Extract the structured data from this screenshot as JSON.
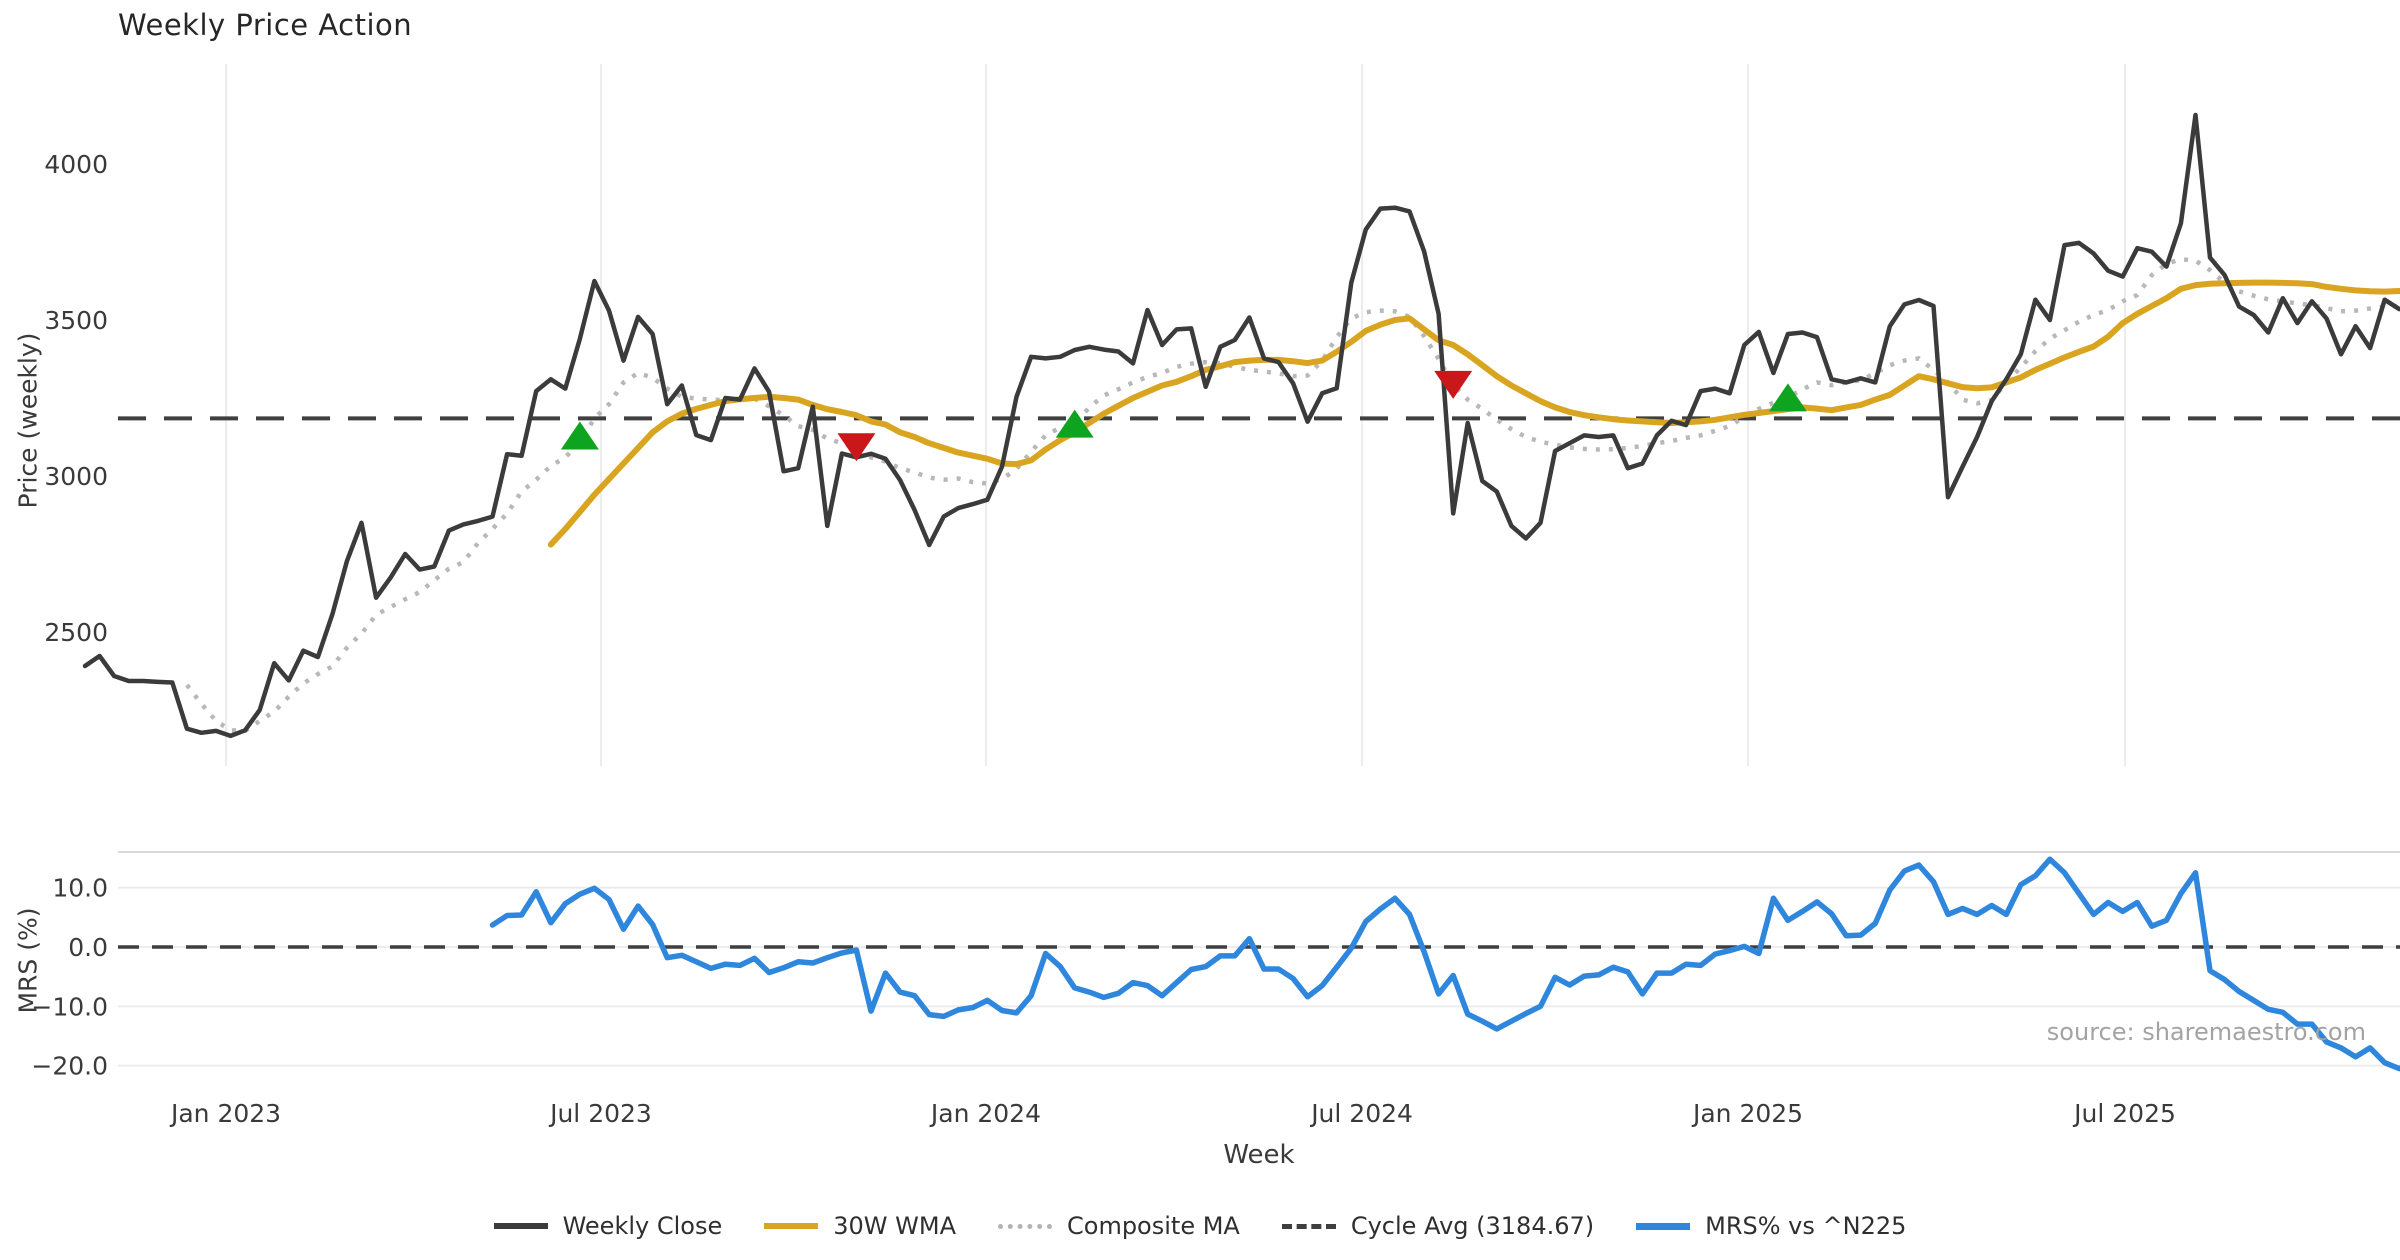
{
  "header": {
    "title": "Weekly Price Action"
  },
  "source_note": "source: sharemaestro.com",
  "colors": {
    "weekly_close": "#3b3b3b",
    "wma": "#d9a521",
    "composite": "#b8b8b8",
    "cycle_avg": "#3f3f3f",
    "mrs": "#2e86dd",
    "marker_up": "#0fa41f",
    "marker_down": "#c9171a",
    "grid": "#ececec",
    "panel_border": "#d9d9d9",
    "tick_text": "#3a3a3a"
  },
  "legend": {
    "items": [
      {
        "label": "Weekly Close",
        "icon": "solid-dark-line"
      },
      {
        "label": "30W WMA",
        "icon": "solid-gold-line"
      },
      {
        "label": "Composite MA",
        "icon": "dotted-gray-line"
      },
      {
        "label": "Cycle Avg (3184.67)",
        "icon": "dashed-dark-line"
      },
      {
        "label": "MRS% vs ^N225",
        "icon": "solid-blue-line"
      }
    ]
  },
  "chart_data": {
    "type": "line",
    "title": "Weekly Price Action",
    "x": {
      "xlabel": "Week",
      "weeks": 160,
      "ticks": [
        {
          "week": 9.69,
          "label": "Jan 2023"
        },
        {
          "week": 35.45,
          "label": "Jul 2023"
        },
        {
          "week": 61.9,
          "label": "Jan 2024"
        },
        {
          "week": 87.74,
          "label": "Jul 2024"
        },
        {
          "week": 114.26,
          "label": "Jan 2025"
        },
        {
          "week": 140.16,
          "label": "Jul 2025"
        }
      ]
    },
    "panels": [
      {
        "id": "price",
        "ylabel": "Price (weekly)",
        "ylim": [
          2100,
          4300
        ],
        "yticks": [
          {
            "v": 2500,
            "label": "2500"
          },
          {
            "v": 3000,
            "label": "3000"
          },
          {
            "v": 3500,
            "label": "3500"
          },
          {
            "v": 4000,
            "label": "4000"
          }
        ],
        "cycle_avg": 3184.67,
        "series": [
          {
            "name": "Weekly Close",
            "style": "solid",
            "color": "#3b3b3b",
            "width": 4.5,
            "start_week": 0,
            "values": [
              2391,
              2423,
              2359,
              2343,
              2343,
              2340,
              2338,
              2190,
              2177,
              2183,
              2167,
              2185,
              2250,
              2400,
              2345,
              2440,
              2420,
              2557,
              2728,
              2850,
              2610,
              2675,
              2750,
              2700,
              2710,
              2825,
              2845,
              2856,
              2870,
              3070,
              3065,
              3272,
              3310,
              3280,
              3440,
              3625,
              3530,
              3370,
              3510,
              3455,
              3230,
              3290,
              3131,
              3115,
              3250,
              3245,
              3345,
              3270,
              3015,
              3025,
              3222,
              2840,
              3072,
              3060,
              3071,
              3055,
              2987,
              2891,
              2779,
              2870,
              2897,
              2910,
              2924,
              3030,
              3254,
              3382,
              3377,
              3382,
              3404,
              3414,
              3405,
              3399,
              3361,
              3532,
              3420,
              3470,
              3473,
              3286,
              3414,
              3436,
              3508,
              3377,
              3365,
              3297,
              3174,
              3265,
              3281,
              3620,
              3790,
              3857,
              3860,
              3848,
              3720,
              3520,
              2880,
              3170,
              2984,
              2950,
              2840,
              2800,
              2850,
              3080,
              3105,
              3130,
              3125,
              3130,
              3025,
              3040,
              3130,
              3177,
              3163,
              3272,
              3280,
              3265,
              3420,
              3462,
              3330,
              3455,
              3460,
              3445,
              3310,
              3300,
              3313,
              3300,
              3480,
              3550,
              3564,
              3545,
              2932,
              3030,
              3125,
              3240,
              3310,
              3390,
              3565,
              3500,
              3740,
              3747,
              3713,
              3658,
              3639,
              3730,
              3719,
              3671,
              3810,
              4157,
              3700,
              3644,
              3543,
              3516,
              3460,
              3570,
              3490,
              3560,
              3505,
              3390,
              3480,
              3410,
              3565,
              3535
            ]
          },
          {
            "name": "30W WMA",
            "style": "solid",
            "color": "#d9a521",
            "width": 6,
            "start_week": 32,
            "values": [
              2780,
              2830,
              2885,
              2940,
              2990,
              3040,
              3090,
              3140,
              3175,
              3200,
              3215,
              3228,
              3240,
              3246,
              3250,
              3254,
              3250,
              3245,
              3228,
              3214,
              3205,
              3195,
              3175,
              3165,
              3140,
              3125,
              3105,
              3090,
              3075,
              3065,
              3055,
              3040,
              3038,
              3050,
              3085,
              3115,
              3140,
              3170,
              3200,
              3225,
              3250,
              3270,
              3290,
              3302,
              3320,
              3340,
              3352,
              3365,
              3370,
              3372,
              3372,
              3368,
              3362,
              3370,
              3398,
              3430,
              3465,
              3485,
              3500,
              3505,
              3470,
              3435,
              3420,
              3390,
              3355,
              3320,
              3290,
              3265,
              3240,
              3220,
              3205,
              3195,
              3188,
              3182,
              3178,
              3175,
              3172,
              3170,
              3172,
              3175,
              3180,
              3188,
              3196,
              3202,
              3208,
              3214,
              3220,
              3216,
              3211,
              3220,
              3228,
              3245,
              3260,
              3290,
              3320,
              3310,
              3297,
              3285,
              3281,
              3284,
              3300,
              3316,
              3340,
              3360,
              3380,
              3398,
              3415,
              3446,
              3490,
              3520,
              3545,
              3570,
              3600,
              3612,
              3616,
              3618,
              3619,
              3620,
              3620,
              3619,
              3618,
              3615,
              3606,
              3600,
              3595,
              3592,
              3591,
              3593
            ]
          },
          {
            "name": "Composite MA",
            "style": "dotted",
            "color": "#b8b8b8",
            "width": 4.5,
            "start_week": 7,
            "values": [
              2330,
              2270,
              2215,
              2185,
              2183,
              2215,
              2245,
              2293,
              2335,
              2365,
              2390,
              2450,
              2495,
              2555,
              2580,
              2605,
              2628,
              2666,
              2703,
              2724,
              2785,
              2830,
              2880,
              2950,
              2988,
              3032,
              3060,
              3108,
              3185,
              3230,
              3300,
              3330,
              3315,
              3280,
              3254,
              3248,
              3245,
              3243,
              3246,
              3248,
              3223,
              3195,
              3160,
              3148,
              3120,
              3105,
              3090,
              3060,
              3046,
              3025,
              3012,
              2995,
              2988,
              2992,
              2980,
              2976,
              2990,
              3022,
              3078,
              3130,
              3155,
              3168,
              3220,
              3258,
              3278,
              3300,
              3318,
              3330,
              3350,
              3360,
              3365,
              3362,
              3350,
              3340,
              3335,
              3329,
              3320,
              3322,
              3370,
              3445,
              3505,
              3525,
              3530,
              3528,
              3510,
              3448,
              3375,
              3292,
              3245,
              3215,
              3180,
              3150,
              3125,
              3110,
              3100,
              3092,
              3087,
              3085,
              3086,
              3090,
              3096,
              3105,
              3112,
              3122,
              3130,
              3145,
              3160,
              3190,
              3215,
              3235,
              3252,
              3278,
              3300,
              3291,
              3300,
              3307,
              3330,
              3355,
              3370,
              3377,
              3340,
              3300,
              3245,
              3233,
              3243,
              3300,
              3348,
              3400,
              3440,
              3467,
              3495,
              3516,
              3532,
              3560,
              3580,
              3644,
              3680,
              3695,
              3690,
              3660,
              3620,
              3592,
              3578,
              3566,
              3560,
              3553,
              3547,
              3538,
              3528,
              3530,
              3537,
              3543,
              3545
            ]
          }
        ],
        "markers": [
          {
            "week": 34,
            "value": 3130,
            "dir": "up"
          },
          {
            "week": 53,
            "value": 3092,
            "dir": "down"
          },
          {
            "week": 68,
            "value": 3168,
            "dir": "up"
          },
          {
            "week": 94,
            "value": 3292,
            "dir": "down"
          },
          {
            "week": 117,
            "value": 3252,
            "dir": "up"
          }
        ]
      },
      {
        "id": "mrs",
        "ylabel": "MRS (%)",
        "ylim": [
          -24,
          17
        ],
        "yticks": [
          {
            "v": 10,
            "label": "10.0"
          },
          {
            "v": 0,
            "label": "0.0"
          },
          {
            "v": -10,
            "label": "−10.0"
          },
          {
            "v": -20,
            "label": "−20.0"
          }
        ],
        "zero_line": 0.0,
        "series": [
          {
            "name": "MRS% vs ^N225",
            "style": "solid",
            "color": "#2e86dd",
            "width": 5.5,
            "start_week": 28,
            "values": [
              3.7,
              5.3,
              5.4,
              9.3,
              4.1,
              7.3,
              8.9,
              9.9,
              8.0,
              3.0,
              6.9,
              3.8,
              -1.8,
              -1.4,
              -2.5,
              -3.6,
              -2.9,
              -3.1,
              -1.9,
              -4.3,
              -3.5,
              -2.5,
              -2.7,
              -1.8,
              -1.0,
              -0.5,
              -10.8,
              -4.4,
              -7.6,
              -8.2,
              -11.4,
              -11.7,
              -10.6,
              -10.2,
              -9.0,
              -10.7,
              -11.1,
              -8.2,
              -1.1,
              -3.3,
              -6.9,
              -7.6,
              -8.5,
              -7.8,
              -6.0,
              -6.5,
              -8.2,
              -6.0,
              -3.8,
              -3.3,
              -1.5,
              -1.5,
              1.4,
              -3.7,
              -3.7,
              -5.3,
              -8.4,
              -6.5,
              -3.4,
              -0.2,
              4.3,
              6.4,
              8.2,
              5.5,
              -0.8,
              -7.9,
              -4.8,
              -11.3,
              -12.5,
              -13.8,
              -12.5,
              -11.2,
              -10.0,
              -5.1,
              -6.4,
              -4.9,
              -4.7,
              -3.4,
              -4.2,
              -7.9,
              -4.4,
              -4.4,
              -2.9,
              -3.1,
              -1.2,
              -0.6,
              0.1,
              -1.1,
              8.2,
              4.5,
              6.0,
              7.6,
              5.6,
              1.9,
              2.0,
              4.0,
              9.6,
              12.8,
              13.8,
              11.0,
              5.5,
              6.5,
              5.5,
              7.0,
              5.5,
              10.5,
              12.0,
              14.8,
              12.5,
              9.0,
              5.5,
              7.5,
              6.0,
              7.5,
              3.5,
              4.5,
              9.0,
              12.5,
              -4.0,
              -5.5,
              -7.5,
              -9.0,
              -10.5,
              -11.0,
              -13.0,
              -13.0,
              -16.0,
              -17.0,
              -18.5,
              -17.0,
              -19.5,
              -20.5,
              -19.5
            ]
          }
        ]
      }
    ]
  }
}
